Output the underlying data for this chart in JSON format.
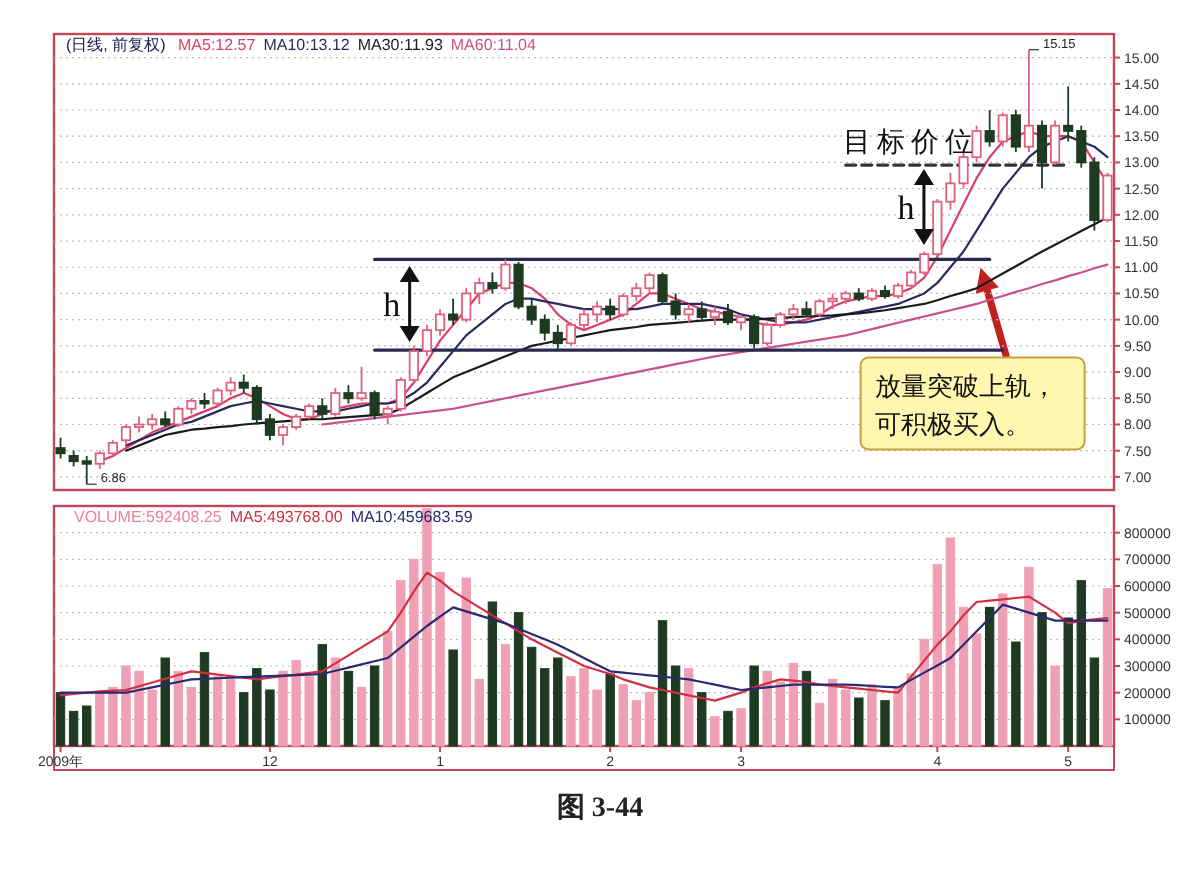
{
  "chart_data": [
    {
      "type": "candlestick",
      "title": "(日线, 前复权)",
      "legend": "top left",
      "grid": "y",
      "tick_labels": "y",
      "ylim": [
        6.75,
        15.45
      ],
      "yticks": [
        {
          "value": 7,
          "label": "7.00"
        },
        {
          "value": 7.5,
          "label": "7.50"
        },
        {
          "value": 8,
          "label": "8.00"
        },
        {
          "value": 8.5,
          "label": "8.50"
        },
        {
          "value": 9,
          "label": "9.00"
        },
        {
          "value": 9.5,
          "label": "9.50"
        },
        {
          "value": 10,
          "label": "10.00"
        },
        {
          "value": 10.5,
          "label": "10.50"
        },
        {
          "value": 11,
          "label": "11.00"
        },
        {
          "value": 11.5,
          "label": "11.50"
        },
        {
          "value": 12,
          "label": "12.00"
        },
        {
          "value": 12.5,
          "label": "12.50"
        },
        {
          "value": 13,
          "label": "13.00"
        },
        {
          "value": 13.5,
          "label": "13.50"
        },
        {
          "value": 14,
          "label": "14.00"
        },
        {
          "value": 14.5,
          "label": "14.50"
        },
        {
          "value": 15,
          "label": "15.00"
        }
      ],
      "categories": [
        null,
        null,
        null,
        null,
        null,
        null,
        null,
        null,
        null,
        null,
        null,
        null,
        null,
        null,
        null,
        null,
        null,
        null,
        null,
        null,
        null,
        null,
        null,
        null,
        null,
        null,
        null,
        null,
        null,
        null,
        null,
        null,
        null,
        null,
        null,
        null,
        null,
        null,
        null,
        null,
        null,
        null,
        null,
        null,
        null,
        null,
        null,
        null,
        null,
        null,
        null,
        null,
        null,
        null,
        null,
        null,
        null,
        null,
        null,
        null,
        null,
        null,
        null,
        null,
        null,
        null,
        null,
        null,
        null,
        null,
        null,
        null,
        null,
        null,
        null,
        null,
        null,
        null,
        null,
        null,
        null
      ],
      "ohlc": [
        [
          7.55,
          7.75,
          7.35,
          7.45
        ],
        [
          7.4,
          7.5,
          7.2,
          7.3
        ],
        [
          7.3,
          7.4,
          6.86,
          7.25
        ],
        [
          7.25,
          7.5,
          7.15,
          7.45
        ],
        [
          7.45,
          7.7,
          7.4,
          7.65
        ],
        [
          7.7,
          8.0,
          7.6,
          7.95
        ],
        [
          7.95,
          8.15,
          7.85,
          8.0
        ],
        [
          8.0,
          8.2,
          7.9,
          8.1
        ],
        [
          8.1,
          8.25,
          7.95,
          8.0
        ],
        [
          8.0,
          8.35,
          7.95,
          8.3
        ],
        [
          8.3,
          8.5,
          8.2,
          8.45
        ],
        [
          8.45,
          8.6,
          8.3,
          8.4
        ],
        [
          8.4,
          8.7,
          8.35,
          8.65
        ],
        [
          8.65,
          8.9,
          8.55,
          8.8
        ],
        [
          8.8,
          8.95,
          8.6,
          8.7
        ],
        [
          8.7,
          8.75,
          8.0,
          8.1
        ],
        [
          8.1,
          8.2,
          7.7,
          7.8
        ],
        [
          7.8,
          8.0,
          7.6,
          7.95
        ],
        [
          7.95,
          8.2,
          7.9,
          8.15
        ],
        [
          8.15,
          8.4,
          8.1,
          8.35
        ],
        [
          8.35,
          8.5,
          8.1,
          8.2
        ],
        [
          8.2,
          8.7,
          8.15,
          8.6
        ],
        [
          8.6,
          8.75,
          8.4,
          8.5
        ],
        [
          8.5,
          9.1,
          8.45,
          8.6
        ],
        [
          8.6,
          8.65,
          8.1,
          8.2
        ],
        [
          8.2,
          8.35,
          8.0,
          8.3
        ],
        [
          8.3,
          8.9,
          8.25,
          8.85
        ],
        [
          8.85,
          9.5,
          8.8,
          9.4
        ],
        [
          9.4,
          9.9,
          9.3,
          9.8
        ],
        [
          9.8,
          10.2,
          9.7,
          10.1
        ],
        [
          10.1,
          10.4,
          9.9,
          10.0
        ],
        [
          10.0,
          10.6,
          9.95,
          10.5
        ],
        [
          10.5,
          10.8,
          10.3,
          10.7
        ],
        [
          10.7,
          10.9,
          10.5,
          10.6
        ],
        [
          10.6,
          11.15,
          10.55,
          11.05
        ],
        [
          11.05,
          11.1,
          10.2,
          10.25
        ],
        [
          10.25,
          10.4,
          9.9,
          10.0
        ],
        [
          10.0,
          10.1,
          9.6,
          9.75
        ],
        [
          9.75,
          9.9,
          9.42,
          9.55
        ],
        [
          9.55,
          9.95,
          9.5,
          9.9
        ],
        [
          9.9,
          10.2,
          9.8,
          10.1
        ],
        [
          10.1,
          10.35,
          9.95,
          10.25
        ],
        [
          10.25,
          10.4,
          10.0,
          10.1
        ],
        [
          10.1,
          10.5,
          10.05,
          10.45
        ],
        [
          10.45,
          10.7,
          10.35,
          10.6
        ],
        [
          10.6,
          10.9,
          10.5,
          10.85
        ],
        [
          10.85,
          10.9,
          10.3,
          10.35
        ],
        [
          10.35,
          10.5,
          10.0,
          10.1
        ],
        [
          10.1,
          10.3,
          9.95,
          10.2
        ],
        [
          10.2,
          10.35,
          10.0,
          10.05
        ],
        [
          10.05,
          10.25,
          9.9,
          10.15
        ],
        [
          10.15,
          10.3,
          9.9,
          9.95
        ],
        [
          9.95,
          10.1,
          9.8,
          10.05
        ],
        [
          10.05,
          10.1,
          9.45,
          9.55
        ],
        [
          9.55,
          9.95,
          9.5,
          9.9
        ],
        [
          9.9,
          10.15,
          9.85,
          10.1
        ],
        [
          10.1,
          10.3,
          10.0,
          10.2
        ],
        [
          10.2,
          10.35,
          10.05,
          10.1
        ],
        [
          10.1,
          10.4,
          10.05,
          10.35
        ],
        [
          10.35,
          10.5,
          10.2,
          10.4
        ],
        [
          10.4,
          10.55,
          10.3,
          10.5
        ],
        [
          10.5,
          10.6,
          10.35,
          10.4
        ],
        [
          10.4,
          10.6,
          10.35,
          10.55
        ],
        [
          10.55,
          10.65,
          10.4,
          10.45
        ],
        [
          10.45,
          10.7,
          10.4,
          10.65
        ],
        [
          10.65,
          10.95,
          10.6,
          10.9
        ],
        [
          10.9,
          11.3,
          10.85,
          11.25
        ],
        [
          11.25,
          12.3,
          11.2,
          12.25
        ],
        [
          12.25,
          12.8,
          12.1,
          12.6
        ],
        [
          12.6,
          13.2,
          12.5,
          13.1
        ],
        [
          13.1,
          13.7,
          13.0,
          13.6
        ],
        [
          13.6,
          14.0,
          13.3,
          13.4
        ],
        [
          13.4,
          13.95,
          13.3,
          13.9
        ],
        [
          13.9,
          14.0,
          13.2,
          13.3
        ],
        [
          13.3,
          15.15,
          13.2,
          13.7
        ],
        [
          13.7,
          13.8,
          12.5,
          13.0
        ],
        [
          13.0,
          13.8,
          12.95,
          13.7
        ],
        [
          13.7,
          14.45,
          13.4,
          13.6
        ],
        [
          13.6,
          13.7,
          12.9,
          13.0
        ],
        [
          13.0,
          13.1,
          11.7,
          11.9
        ],
        [
          11.9,
          12.8,
          11.85,
          12.75
        ]
      ],
      "colors": [
        "#1e3a22",
        "#1e3a22",
        "#1e3a22",
        "#e0607f",
        "#e0607f",
        "#e0607f",
        "#e0607f",
        "#e0607f",
        "#1e3a22",
        "#e0607f",
        "#e0607f",
        "#1e3a22",
        "#e0607f",
        "#e0607f",
        "#1e3a22",
        "#1e3a22",
        "#1e3a22",
        "#e0607f",
        "#e0607f",
        "#e0607f",
        "#1e3a22",
        "#e0607f",
        "#1e3a22",
        "#e0607f",
        "#1e3a22",
        "#e0607f",
        "#e0607f",
        "#e0607f",
        "#e0607f",
        "#e0607f",
        "#1e3a22",
        "#e0607f",
        "#e0607f",
        "#1e3a22",
        "#e0607f",
        "#1e3a22",
        "#1e3a22",
        "#1e3a22",
        "#1e3a22",
        "#e0607f",
        "#e0607f",
        "#e0607f",
        "#1e3a22",
        "#e0607f",
        "#e0607f",
        "#e0607f",
        "#1e3a22",
        "#1e3a22",
        "#e0607f",
        "#1e3a22",
        "#e0607f",
        "#1e3a22",
        "#e0607f",
        "#1e3a22",
        "#e0607f",
        "#e0607f",
        "#e0607f",
        "#1e3a22",
        "#e0607f",
        "#e0607f",
        "#e0607f",
        "#1e3a22",
        "#e0607f",
        "#1e3a22",
        "#e0607f",
        "#e0607f",
        "#e0607f",
        "#e0607f",
        "#e0607f",
        "#e0607f",
        "#e0607f",
        "#1e3a22",
        "#e0607f",
        "#1e3a22",
        "#e0607f",
        "#1e3a22",
        "#e0607f",
        "#1e3a22",
        "#1e3a22",
        "#1e3a22",
        "#e0607f"
      ],
      "series": [
        {
          "type": "line",
          "name": "MA5:12.57",
          "color": "#d8406a",
          "values": [
            null,
            null,
            null,
            7.3,
            7.4,
            7.55,
            7.7,
            7.85,
            7.95,
            8.05,
            8.15,
            8.25,
            8.35,
            8.5,
            8.6,
            8.5,
            8.35,
            8.2,
            8.1,
            8.1,
            8.2,
            8.3,
            8.35,
            8.4,
            8.4,
            8.4,
            8.5,
            8.8,
            9.2,
            9.6,
            9.9,
            10.2,
            10.5,
            10.6,
            10.7,
            10.7,
            10.6,
            10.4,
            10.1,
            9.9,
            9.8,
            9.9,
            10.0,
            10.1,
            10.3,
            10.5,
            10.5,
            10.4,
            10.3,
            10.2,
            10.15,
            10.1,
            10.05,
            9.95,
            9.9,
            9.9,
            9.95,
            10.0,
            10.1,
            10.25,
            10.35,
            10.4,
            10.45,
            10.45,
            10.5,
            10.6,
            10.8,
            11.2,
            11.7,
            12.2,
            12.7,
            13.1,
            13.4,
            13.5,
            13.6,
            13.5,
            13.5,
            13.5,
            13.4,
            13.0,
            12.6
          ]
        },
        {
          "type": "line",
          "name": "MA10:13.12",
          "color": "#2a2a60",
          "values": [
            null,
            null,
            null,
            null,
            null,
            7.6,
            7.7,
            7.8,
            7.9,
            8.0,
            8.05,
            8.15,
            8.25,
            8.35,
            8.4,
            8.45,
            8.4,
            8.35,
            8.3,
            8.25,
            8.25,
            8.25,
            8.3,
            8.35,
            8.4,
            8.4,
            8.45,
            8.6,
            8.8,
            9.1,
            9.4,
            9.7,
            9.9,
            10.1,
            10.3,
            10.4,
            10.4,
            10.35,
            10.3,
            10.25,
            10.2,
            10.2,
            10.2,
            10.2,
            10.2,
            10.25,
            10.3,
            10.3,
            10.3,
            10.3,
            10.25,
            10.2,
            10.1,
            10.05,
            10.0,
            9.95,
            9.95,
            9.95,
            10.0,
            10.05,
            10.1,
            10.15,
            10.2,
            10.25,
            10.3,
            10.4,
            10.5,
            10.7,
            11.0,
            11.3,
            11.7,
            12.1,
            12.5,
            12.8,
            13.1,
            13.3,
            13.4,
            13.5,
            13.4,
            13.3,
            13.1
          ]
        },
        {
          "type": "line",
          "name": "MA30:11.93",
          "color": "#1a1a1a",
          "values": [
            null,
            null,
            null,
            null,
            null,
            7.5,
            7.6,
            7.7,
            7.8,
            7.85,
            7.9,
            7.92,
            7.95,
            7.97,
            8.0,
            8.02,
            8.04,
            8.06,
            8.08,
            8.1,
            8.1,
            8.12,
            8.14,
            8.16,
            8.18,
            8.2,
            8.3,
            8.45,
            8.6,
            8.75,
            8.9,
            9.0,
            9.1,
            9.2,
            9.3,
            9.4,
            9.5,
            9.55,
            9.6,
            9.65,
            9.7,
            9.75,
            9.8,
            9.83,
            9.86,
            9.9,
            9.92,
            9.94,
            9.96,
            9.98,
            10.0,
            10.0,
            10.0,
            10.0,
            10.02,
            10.03,
            10.05,
            10.06,
            10.07,
            10.08,
            10.1,
            10.12,
            10.15,
            10.18,
            10.22,
            10.26,
            10.3,
            10.37,
            10.45,
            10.52,
            10.6,
            10.74,
            10.88,
            11.02,
            11.16,
            11.3,
            11.43,
            11.56,
            11.69,
            11.82,
            11.95
          ]
        },
        {
          "type": "line",
          "name": "MA60:11.04",
          "color": "#c8508c",
          "values": [
            null,
            null,
            null,
            null,
            null,
            null,
            null,
            null,
            null,
            null,
            null,
            null,
            null,
            null,
            null,
            null,
            null,
            null,
            null,
            null,
            8.0,
            8.03,
            8.06,
            8.09,
            8.12,
            8.15,
            8.18,
            8.21,
            8.24,
            8.27,
            8.3,
            8.35,
            8.4,
            8.45,
            8.5,
            8.55,
            8.6,
            8.65,
            8.7,
            8.75,
            8.8,
            8.85,
            8.9,
            8.95,
            9.0,
            9.05,
            9.1,
            9.15,
            9.2,
            9.25,
            9.3,
            9.34,
            9.38,
            9.42,
            9.46,
            9.5,
            9.54,
            9.58,
            9.62,
            9.66,
            9.7,
            9.76,
            9.82,
            9.88,
            9.94,
            10.0,
            10.06,
            10.12,
            10.18,
            10.24,
            10.3,
            10.38,
            10.45,
            10.53,
            10.6,
            10.68,
            10.75,
            10.83,
            10.9,
            10.98,
            11.05
          ]
        },
        {
          "type": "line",
          "color": "#2a2a50",
          "values": [
            null,
            null,
            null,
            null,
            null,
            null,
            null,
            null,
            null,
            null,
            null,
            null,
            null,
            null,
            null,
            null,
            null,
            null,
            null,
            null,
            null,
            null,
            null,
            null,
            11.15,
            11.15,
            11.15,
            11.15,
            11.15,
            11.15,
            11.15,
            11.15,
            11.15,
            11.15,
            11.15,
            11.15,
            11.15,
            11.15,
            11.15,
            11.15,
            11.15,
            11.15,
            11.15,
            11.15,
            11.15,
            11.15,
            11.15,
            11.15,
            11.15,
            11.15,
            11.15,
            11.15,
            11.15,
            11.15,
            11.15,
            11.15,
            11.15,
            11.15,
            11.15,
            11.15,
            11.15,
            11.15,
            11.15,
            11.15,
            11.15,
            11.15,
            11.15,
            11.15,
            11.15,
            11.15,
            11.15,
            11.15,
            null,
            null,
            null,
            null,
            null,
            null,
            null,
            null,
            null
          ]
        },
        {
          "type": "line",
          "color": "#2a2a50",
          "values": [
            null,
            null,
            null,
            null,
            null,
            null,
            null,
            null,
            null,
            null,
            null,
            null,
            null,
            null,
            null,
            null,
            null,
            null,
            null,
            null,
            null,
            null,
            null,
            null,
            9.42,
            9.42,
            9.42,
            9.42,
            9.42,
            9.42,
            9.42,
            9.42,
            9.42,
            9.42,
            9.42,
            9.42,
            9.42,
            9.42,
            9.42,
            9.42,
            9.42,
            9.42,
            9.42,
            9.42,
            9.42,
            9.42,
            9.42,
            9.42,
            9.42,
            9.42,
            9.42,
            9.42,
            9.42,
            9.42,
            9.42,
            9.42,
            9.42,
            9.42,
            9.42,
            9.42,
            9.42,
            9.42,
            9.42,
            9.42,
            9.42,
            9.42,
            9.42,
            9.42,
            9.42,
            9.42,
            9.42,
            9.42,
            9.42,
            null,
            null,
            null,
            null,
            null,
            null,
            null,
            null
          ]
        },
        {
          "type": "line",
          "color": "#333333",
          "line_style": "dashed",
          "values": [
            null,
            null,
            null,
            null,
            null,
            null,
            null,
            null,
            null,
            null,
            null,
            null,
            null,
            null,
            null,
            null,
            null,
            null,
            null,
            null,
            null,
            null,
            null,
            null,
            null,
            null,
            null,
            null,
            null,
            null,
            null,
            null,
            null,
            null,
            null,
            null,
            null,
            null,
            null,
            null,
            null,
            null,
            null,
            null,
            null,
            null,
            null,
            null,
            null,
            null,
            null,
            null,
            null,
            null,
            null,
            null,
            null,
            null,
            null,
            null,
            12.95,
            12.95,
            12.95,
            12.95,
            12.95,
            12.95,
            12.95,
            12.95,
            12.95,
            12.95,
            12.95,
            12.95,
            12.95,
            12.95,
            12.95,
            12.95,
            12.95,
            12.95,
            null,
            null,
            null
          ]
        }
      ],
      "annotations": [
        "15.15",
        "6.86",
        {
          "text": "目标价位",
          "y": 12.95
        },
        "h",
        "h",
        "放量突破上轨，可积极买入。"
      ]
    },
    {
      "type": "bar",
      "legend": "top left",
      "grid": "y",
      "ylim": [
        0,
        900000
      ],
      "yticks": [
        100000,
        200000,
        300000,
        400000,
        500000,
        600000,
        700000,
        800000
      ],
      "categories": [
        "2009年",
        null,
        null,
        null,
        null,
        null,
        null,
        null,
        null,
        null,
        null,
        null,
        null,
        null,
        null,
        null,
        "12",
        null,
        null,
        null,
        null,
        null,
        null,
        null,
        null,
        null,
        null,
        null,
        null,
        "1",
        null,
        null,
        null,
        null,
        null,
        null,
        null,
        null,
        null,
        null,
        null,
        null,
        "2",
        null,
        null,
        null,
        null,
        null,
        null,
        null,
        null,
        null,
        "3",
        null,
        null,
        null,
        null,
        null,
        null,
        null,
        null,
        null,
        null,
        null,
        null,
        null,
        null,
        "4",
        null,
        null,
        null,
        null,
        null,
        null,
        null,
        null,
        null,
        "5",
        null,
        null,
        null
      ],
      "series": [
        {
          "name": "VOLUME:592408.25",
          "color": "#e8829a",
          "values": [
            200000,
            130000,
            150000,
            200000,
            220000,
            300000,
            280000,
            210000,
            330000,
            280000,
            220000,
            350000,
            260000,
            250000,
            200000,
            290000,
            210000,
            280000,
            320000,
            260000,
            380000,
            330000,
            280000,
            220000,
            300000,
            430000,
            620000,
            700000,
            890000,
            650000,
            360000,
            630000,
            250000,
            540000,
            380000,
            500000,
            370000,
            290000,
            330000,
            260000,
            290000,
            210000,
            270000,
            230000,
            170000,
            200000,
            470000,
            300000,
            290000,
            200000,
            110000,
            130000,
            140000,
            300000,
            280000,
            240000,
            310000,
            280000,
            160000,
            250000,
            210000,
            180000,
            230000,
            170000,
            220000,
            270000,
            400000,
            680000,
            780000,
            520000,
            420000,
            520000,
            570000,
            390000,
            670000,
            500000,
            300000,
            480000,
            620000,
            330000,
            590000
          ],
          "colors": [
            "#1e3a22",
            "#1e3a22",
            "#1e3a22",
            "#f0a0b4",
            "#f0a0b4",
            "#f0a0b4",
            "#f0a0b4",
            "#f0a0b4",
            "#1e3a22",
            "#f0a0b4",
            "#f0a0b4",
            "#1e3a22",
            "#f0a0b4",
            "#f0a0b4",
            "#1e3a22",
            "#1e3a22",
            "#1e3a22",
            "#f0a0b4",
            "#f0a0b4",
            "#f0a0b4",
            "#1e3a22",
            "#f0a0b4",
            "#1e3a22",
            "#f0a0b4",
            "#1e3a22",
            "#f0a0b4",
            "#f0a0b4",
            "#f0a0b4",
            "#f0a0b4",
            "#f0a0b4",
            "#1e3a22",
            "#f0a0b4",
            "#f0a0b4",
            "#1e3a22",
            "#f0a0b4",
            "#1e3a22",
            "#1e3a22",
            "#1e3a22",
            "#1e3a22",
            "#f0a0b4",
            "#f0a0b4",
            "#f0a0b4",
            "#1e3a22",
            "#f0a0b4",
            "#f0a0b4",
            "#f0a0b4",
            "#1e3a22",
            "#1e3a22",
            "#f0a0b4",
            "#1e3a22",
            "#f0a0b4",
            "#1e3a22",
            "#f0a0b4",
            "#1e3a22",
            "#f0a0b4",
            "#f0a0b4",
            "#f0a0b4",
            "#1e3a22",
            "#f0a0b4",
            "#f0a0b4",
            "#f0a0b4",
            "#1e3a22",
            "#f0a0b4",
            "#1e3a22",
            "#f0a0b4",
            "#f0a0b4",
            "#f0a0b4",
            "#f0a0b4",
            "#f0a0b4",
            "#f0a0b4",
            "#f0a0b4",
            "#1e3a22",
            "#f0a0b4",
            "#1e3a22",
            "#f0a0b4",
            "#1e3a22",
            "#f0a0b4",
            "#1e3a22",
            "#1e3a22",
            "#1e3a22",
            "#f0a0b4"
          ]
        },
        {
          "type": "line",
          "name": "MA5:493768.00",
          "color": "#d03040",
          "values": [
            190000,
            195000,
            200000,
            205000,
            208000,
            210000,
            224000,
            238000,
            252000,
            266000,
            280000,
            274000,
            268000,
            262000,
            256000,
            250000,
            256000,
            262000,
            268000,
            274000,
            280000,
            310000,
            340000,
            370000,
            400000,
            430000,
            500000,
            580000,
            650000,
            620000,
            580000,
            550000,
            520000,
            490000,
            460000,
            430000,
            400000,
            375000,
            350000,
            325000,
            300000,
            285000,
            270000,
            250000,
            235000,
            220000,
            210000,
            200000,
            190000,
            180000,
            170000,
            185000,
            200000,
            220000,
            235000,
            250000,
            245000,
            240000,
            230000,
            225000,
            220000,
            215000,
            210000,
            205000,
            200000,
            260000,
            320000,
            380000,
            430000,
            490000,
            540000,
            545000,
            550000,
            555000,
            560000,
            530000,
            500000,
            460000,
            470000,
            475000,
            480000
          ]
        },
        {
          "type": "line",
          "name": "MA10:459683.59",
          "color": "#2a2a70",
          "values": [
            200000,
            200000,
            200000,
            200000,
            200000,
            200000,
            210000,
            220000,
            230000,
            240000,
            250000,
            252000,
            254000,
            256000,
            258000,
            260000,
            262000,
            264000,
            266000,
            268000,
            270000,
            282000,
            294000,
            306000,
            318000,
            330000,
            370000,
            410000,
            450000,
            485000,
            520000,
            505000,
            490000,
            475000,
            460000,
            440000,
            420000,
            400000,
            380000,
            355000,
            330000,
            305000,
            280000,
            275000,
            270000,
            265000,
            260000,
            255000,
            250000,
            240000,
            230000,
            220000,
            210000,
            215000,
            220000,
            225000,
            230000,
            230000,
            230000,
            230000,
            230000,
            228000,
            225000,
            222000,
            220000,
            248000,
            275000,
            302000,
            330000,
            380000,
            430000,
            480000,
            530000,
            515000,
            500000,
            485000,
            470000,
            470000,
            470000,
            470000,
            470000
          ]
        }
      ],
      "annotations": [
        "图 3-44"
      ]
    }
  ]
}
